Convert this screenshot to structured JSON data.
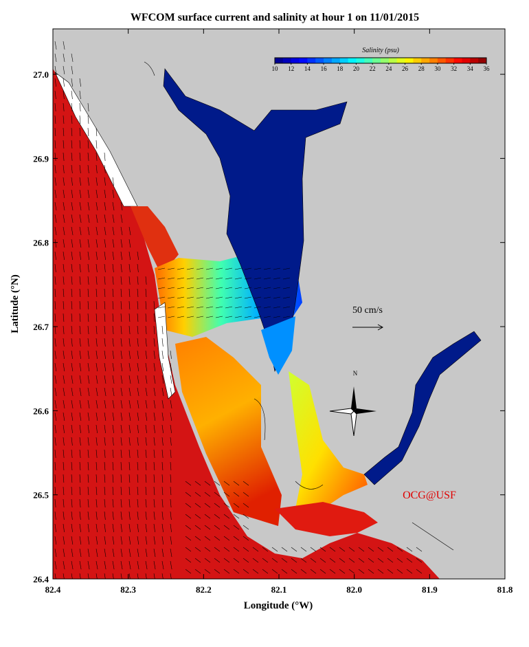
{
  "title": "WFCOM surface current and salinity at hour 1 on 11/01/2015",
  "x_axis": {
    "label": "Longitude (°W)",
    "lim": [
      82.4,
      81.8
    ],
    "ticks": [
      82.4,
      82.3,
      82.2,
      82.1,
      {
        "value": 82,
        "label": "82.0"
      },
      81.9,
      81.8
    ]
  },
  "y_axis": {
    "label": "Latitude (°N)",
    "lim": [
      26.4,
      27.054
    ],
    "ticks": [
      26.4,
      26.5,
      26.6,
      26.7,
      26.8,
      26.9,
      {
        "value": 27,
        "label": "27.0"
      }
    ]
  },
  "colorbar": {
    "label": "Salinity (psu)",
    "colormap": "jet",
    "lim": [
      10,
      36
    ],
    "ticks": [
      10,
      12,
      14,
      16,
      18,
      20,
      22,
      24,
      26,
      28,
      30,
      32,
      34,
      36
    ]
  },
  "scale_arrow": {
    "label": "50 cm/s"
  },
  "compass": {
    "label": "N"
  },
  "credit": "OCG@USF"
}
